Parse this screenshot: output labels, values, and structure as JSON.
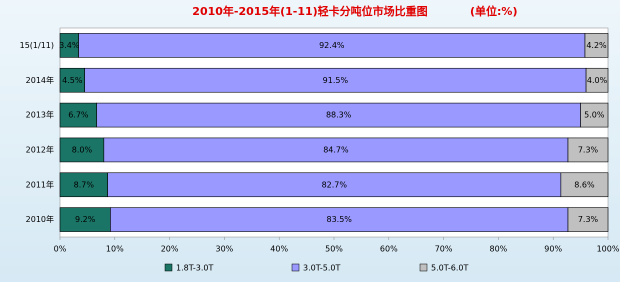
{
  "chart_data": {
    "type": "stacked-bar-horizontal",
    "title": "2010年-2015年(1-11)轻卡分吨位市场比重图",
    "subtitle": "(单位:%)",
    "categories": [
      "15(1/11)",
      "2014年",
      "2013年",
      "2012年",
      "2011年",
      "2010年"
    ],
    "series": [
      {
        "name": "1.8T-3.0T",
        "color": "#1b7566",
        "values": [
          3.4,
          4.5,
          6.7,
          8.0,
          8.7,
          9.2
        ],
        "value_labels": [
          "3.4%",
          "4.5%",
          "6.7%",
          "8.0%",
          "8.7%",
          "9.2%"
        ]
      },
      {
        "name": "3.0T-5.0T",
        "color": "#9999ff",
        "values": [
          92.4,
          91.5,
          88.3,
          84.7,
          82.7,
          83.5
        ],
        "value_labels": [
          "92.4%",
          "91.5%",
          "88.3%",
          "84.7%",
          "82.7%",
          "83.5%"
        ]
      },
      {
        "name": "5.0T-6.0T",
        "color": "#c0c0c0",
        "values": [
          4.2,
          4.0,
          5.0,
          7.3,
          8.6,
          7.3
        ],
        "value_labels": [
          "4.2%",
          "4.0%",
          "5.0%",
          "7.3%",
          "8.6%",
          "7.3%"
        ]
      }
    ],
    "xlim": [
      0,
      100
    ],
    "xticks": [
      {
        "value": 0,
        "label": "0%"
      },
      {
        "value": 10,
        "label": "10%"
      },
      {
        "value": 20,
        "label": "20%"
      },
      {
        "value": 30,
        "label": "30%"
      },
      {
        "value": 40,
        "label": "40%"
      },
      {
        "value": 50,
        "label": "50%"
      },
      {
        "value": 60,
        "label": "60%"
      },
      {
        "value": 70,
        "label": "70%"
      },
      {
        "value": 80,
        "label": "80%"
      },
      {
        "value": 90,
        "label": "90%"
      },
      {
        "value": 100,
        "label": "100%"
      }
    ]
  }
}
